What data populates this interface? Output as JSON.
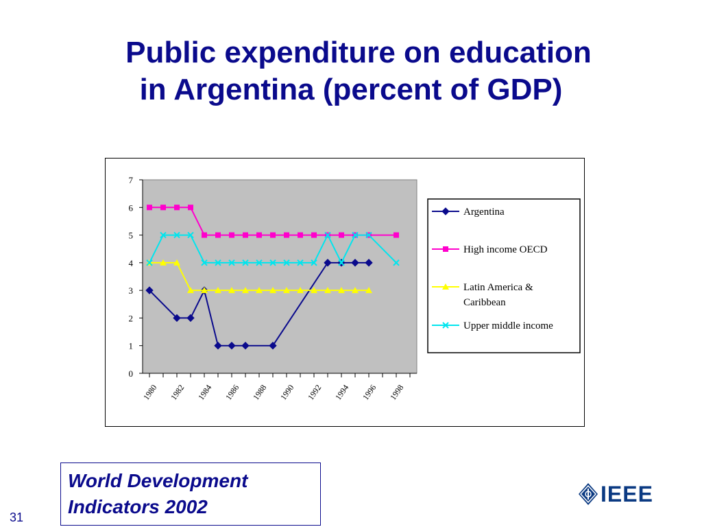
{
  "slide": {
    "title_line1": "Public expenditure on education",
    "title_line2": "in Argentina (percent of GDP)",
    "source_line1": "World Development",
    "source_line2": "Indicators 2002",
    "slide_number": "31",
    "logo_text": "IEEE"
  },
  "chart_data": {
    "type": "line",
    "title": "",
    "xlabel": "",
    "ylabel": "",
    "ylim": [
      0,
      7
    ],
    "yticks": [
      0,
      1,
      2,
      3,
      4,
      5,
      6,
      7
    ],
    "xlim": [
      1980,
      1999
    ],
    "x_tick_labels": [
      "1980",
      "1982",
      "1984",
      "1986",
      "1988",
      "1990",
      "1992",
      "1994",
      "1996",
      "1998"
    ],
    "grid": false,
    "plot_background": "#c0c0c0",
    "legend_position": "right",
    "series": [
      {
        "name": "Argentina",
        "color": "#0a0a8c",
        "marker": "diamond",
        "points": [
          [
            1980,
            3
          ],
          [
            1982,
            2
          ],
          [
            1983,
            2
          ],
          [
            1984,
            3
          ],
          [
            1985,
            1
          ],
          [
            1986,
            1
          ],
          [
            1987,
            1
          ],
          [
            1989,
            1
          ],
          [
            1993,
            4
          ],
          [
            1994,
            4
          ],
          [
            1995,
            4
          ],
          [
            1996,
            4
          ]
        ]
      },
      {
        "name": "High income OECD",
        "color": "#ff00cc",
        "marker": "square",
        "points": [
          [
            1980,
            6
          ],
          [
            1981,
            6
          ],
          [
            1982,
            6
          ],
          [
            1983,
            6
          ],
          [
            1984,
            5
          ],
          [
            1985,
            5
          ],
          [
            1986,
            5
          ],
          [
            1987,
            5
          ],
          [
            1988,
            5
          ],
          [
            1989,
            5
          ],
          [
            1990,
            5
          ],
          [
            1991,
            5
          ],
          [
            1992,
            5
          ],
          [
            1993,
            5
          ],
          [
            1994,
            5
          ],
          [
            1995,
            5
          ],
          [
            1996,
            5
          ],
          [
            1998,
            5
          ]
        ]
      },
      {
        "name": "Latin America & Caribbean",
        "legend_lines": [
          "Latin America &",
          "Caribbean"
        ],
        "color": "#ffff00",
        "marker": "triangle",
        "points": [
          [
            1980,
            4
          ],
          [
            1981,
            4
          ],
          [
            1982,
            4
          ],
          [
            1983,
            3
          ],
          [
            1984,
            3
          ],
          [
            1985,
            3
          ],
          [
            1986,
            3
          ],
          [
            1987,
            3
          ],
          [
            1988,
            3
          ],
          [
            1989,
            3
          ],
          [
            1990,
            3
          ],
          [
            1991,
            3
          ],
          [
            1992,
            3
          ],
          [
            1993,
            3
          ],
          [
            1994,
            3
          ],
          [
            1995,
            3
          ],
          [
            1996,
            3
          ]
        ]
      },
      {
        "name": "Upper middle income",
        "color": "#00e5ee",
        "marker": "x",
        "points": [
          [
            1980,
            4
          ],
          [
            1981,
            5
          ],
          [
            1982,
            5
          ],
          [
            1983,
            5
          ],
          [
            1984,
            4
          ],
          [
            1985,
            4
          ],
          [
            1986,
            4
          ],
          [
            1987,
            4
          ],
          [
            1988,
            4
          ],
          [
            1989,
            4
          ],
          [
            1990,
            4
          ],
          [
            1991,
            4
          ],
          [
            1992,
            4
          ],
          [
            1993,
            5
          ],
          [
            1994,
            4
          ],
          [
            1995,
            5
          ],
          [
            1996,
            5
          ],
          [
            1998,
            4
          ]
        ]
      }
    ]
  }
}
